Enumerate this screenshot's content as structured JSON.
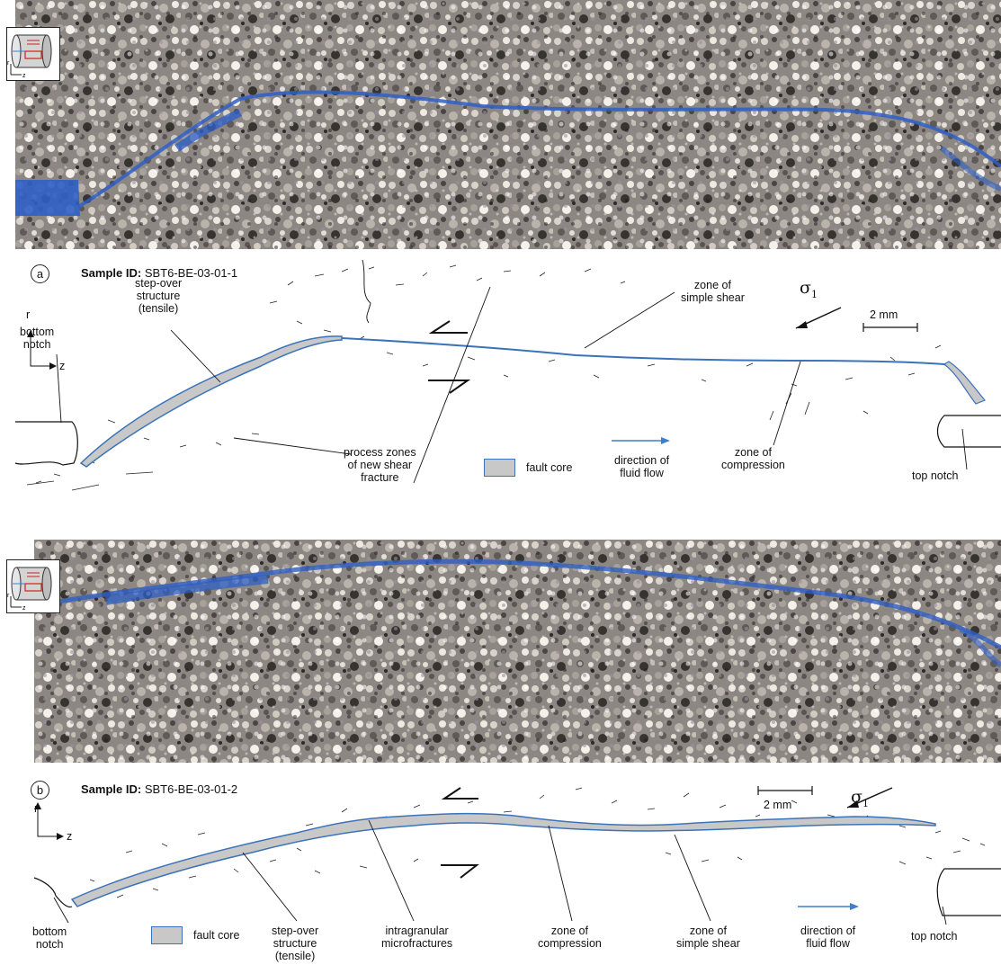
{
  "panel_a": {
    "label": "a",
    "sample_id_label": "Sample ID:",
    "sample_id": "SBT6-BE-03-01-1",
    "axis_r": "r",
    "axis_z": "z",
    "sigma": "σ",
    "sigma_sub": "1",
    "scale_bar": "2 mm",
    "labels": {
      "step_over_1": "step-over",
      "step_over_2": "structure",
      "step_over_3": "(tensile)",
      "bottom_notch_1": "bottom",
      "bottom_notch_2": "notch",
      "process_1": "process zones",
      "process_2": "of new shear",
      "process_3": "fracture",
      "fault_core": "fault core",
      "direction_1": "direction of",
      "direction_2": "fluid flow",
      "compression_1": "zone of",
      "compression_2": "compression",
      "top_notch": "top notch",
      "simple_shear_1": "zone of",
      "simple_shear_2": "simple shear"
    }
  },
  "panel_b": {
    "label": "b",
    "sample_id_label": "Sample ID:",
    "sample_id": "SBT6-BE-03-01-2",
    "axis_r": "r",
    "axis_z": "z",
    "sigma": "σ",
    "sigma_sub": "1",
    "scale_bar": "2 mm",
    "labels": {
      "bottom_notch_1": "bottom",
      "bottom_notch_2": "notch",
      "fault_core": "fault core",
      "step_over_1": "step-over",
      "step_over_2": "structure",
      "step_over_3": "(tensile)",
      "intragranular_1": "intragranular",
      "intragranular_2": "microfractures",
      "compression_1": "zone of",
      "compression_2": "compression",
      "simple_shear_1": "zone of",
      "simple_shear_2": "simple shear",
      "direction_1": "direction of",
      "direction_2": "fluid flow",
      "top_notch": "top notch"
    }
  },
  "colors": {
    "fault_core_fill": "#c8c8c8",
    "fault_core_edge": "#3b73b9",
    "fluid_blue": "#2f5fc4",
    "arrow_blue": "#3b7fd0"
  }
}
